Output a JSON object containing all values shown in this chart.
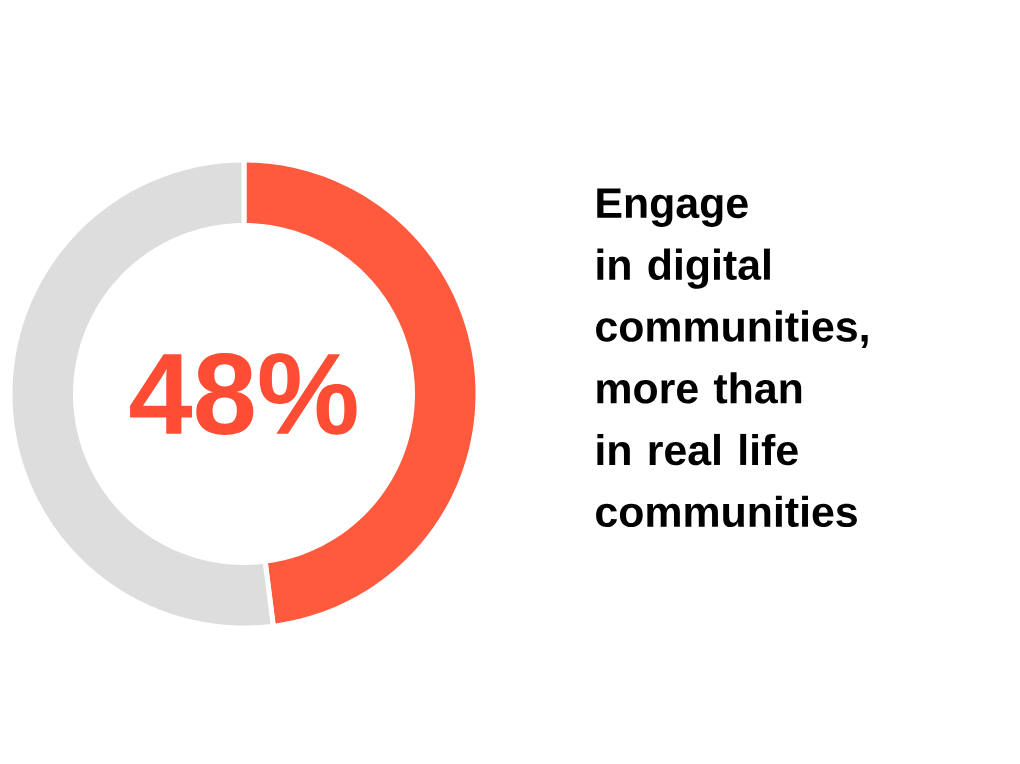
{
  "chart_data": {
    "type": "donut",
    "categories": [
      null,
      null
    ],
    "values": [
      48,
      52
    ],
    "colors": [
      "#ff5a3d",
      "#dddddd"
    ],
    "annotations": [
      "48%",
      "Engage in digital communities, more than in real life communities"
    ]
  }
}
